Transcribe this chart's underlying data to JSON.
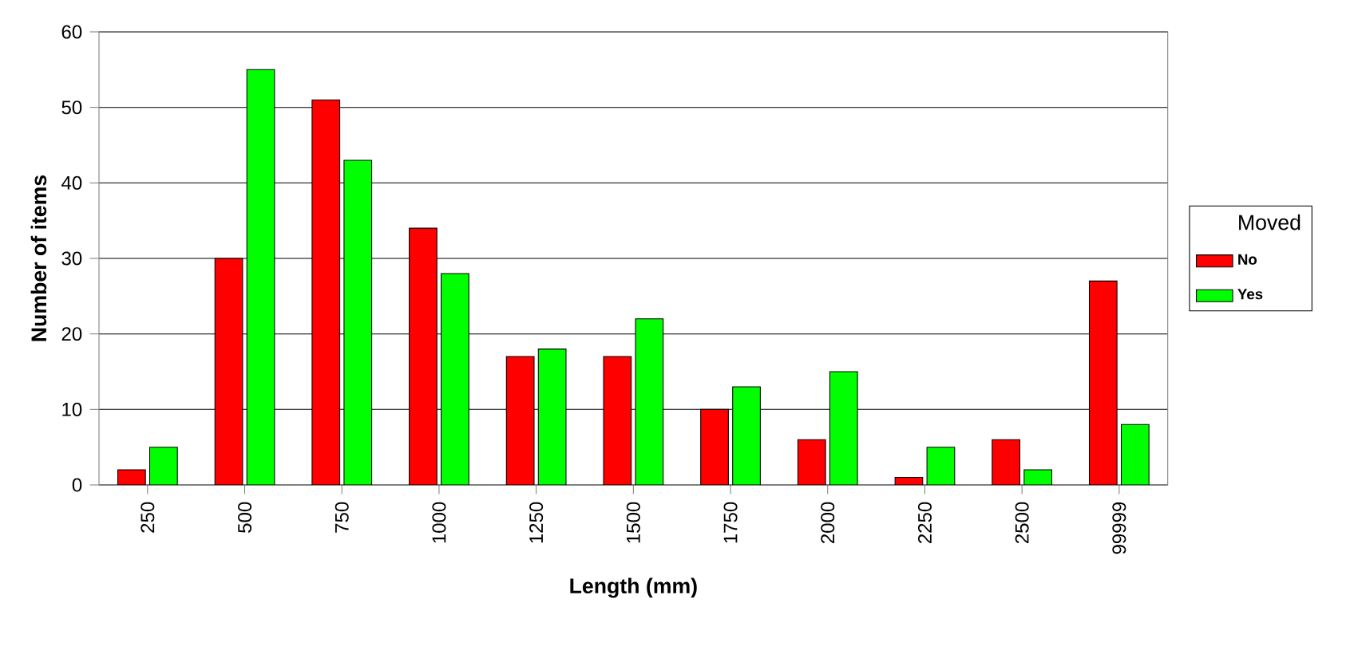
{
  "chart_data": {
    "type": "bar",
    "xlabel": "Length (mm)",
    "ylabel": "Number of items",
    "legend_title": "Moved",
    "categories": [
      "250",
      "500",
      "750",
      "1000",
      "1250",
      "1500",
      "1750",
      "2000",
      "2250",
      "2500",
      "99999"
    ],
    "series": [
      {
        "name": "No",
        "color": "#ff0000",
        "values": [
          2,
          30,
          51,
          34,
          17,
          17,
          10,
          6,
          1,
          6,
          27
        ]
      },
      {
        "name": "Yes",
        "color": "#00ff00",
        "values": [
          5,
          55,
          43,
          28,
          18,
          22,
          13,
          15,
          5,
          2,
          8
        ]
      }
    ],
    "ylim": [
      0,
      60
    ],
    "yticks": [
      0,
      10,
      20,
      30,
      40,
      50,
      60
    ],
    "grid": "y",
    "legend": "right"
  }
}
